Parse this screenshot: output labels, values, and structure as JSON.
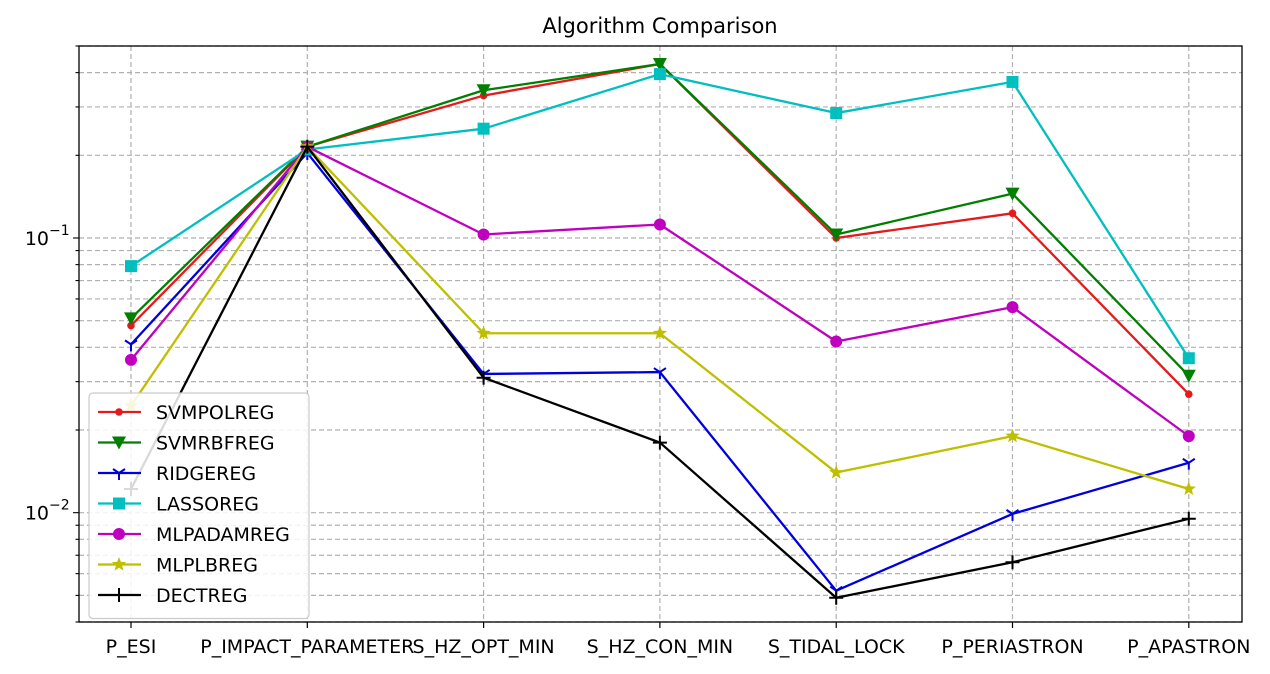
{
  "chart_data": {
    "type": "line",
    "title": "Algorithm Comparison",
    "xlabel": "",
    "ylabel": "",
    "yscale": "log",
    "ylim": [
      0.004,
      0.5
    ],
    "y_ticks": [
      {
        "value": 0.1,
        "base": "10",
        "exp": "−1"
      },
      {
        "value": 0.01,
        "base": "10",
        "exp": "−2"
      }
    ],
    "grid": true,
    "legend_position": "lower-left",
    "categories": [
      "P_ESI",
      "P_IMPACT_PARAMETER",
      "S_HZ_OPT_MIN",
      "S_HZ_CON_MIN",
      "S_TIDAL_LOCK",
      "P_PERIASTRON",
      "P_APASTRON"
    ],
    "series": [
      {
        "name": "SVMPOLREG",
        "color": "#e41a1c",
        "marker": "point",
        "values": [
          0.048,
          0.215,
          0.33,
          0.43,
          0.1,
          0.123,
          0.027
        ]
      },
      {
        "name": "SVMRBFREG",
        "color": "#007f00",
        "marker": "triangle-down",
        "values": [
          0.051,
          0.215,
          0.345,
          0.43,
          0.103,
          0.145,
          0.0315
        ]
      },
      {
        "name": "RIDGEREG",
        "color": "#0000dd",
        "marker": "tri-down",
        "values": [
          0.041,
          0.204,
          0.032,
          0.0325,
          0.0052,
          0.0099,
          0.0152
        ]
      },
      {
        "name": "LASSOREG",
        "color": "#00bfbf",
        "marker": "square",
        "values": [
          0.079,
          0.21,
          0.25,
          0.395,
          0.285,
          0.37,
          0.0365
        ]
      },
      {
        "name": "MLPADAMREG",
        "color": "#bf00bf",
        "marker": "circle",
        "values": [
          0.036,
          0.215,
          0.103,
          0.112,
          0.042,
          0.056,
          0.019
        ]
      },
      {
        "name": "MLPLBREG",
        "color": "#bfbf00",
        "marker": "star",
        "values": [
          0.0245,
          0.215,
          0.045,
          0.045,
          0.014,
          0.019,
          0.0122
        ]
      },
      {
        "name": "DECTREG",
        "color": "#000000",
        "marker": "plus",
        "values": [
          0.0122,
          0.215,
          0.031,
          0.018,
          0.0049,
          0.0066,
          0.0095
        ]
      }
    ]
  }
}
